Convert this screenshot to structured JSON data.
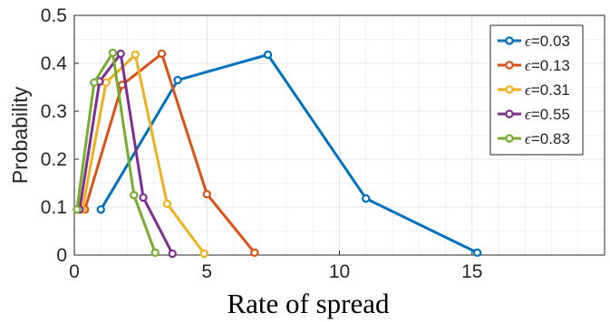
{
  "chart_data": {
    "type": "line",
    "xlabel": "Rate of spread",
    "ylabel": "Probability",
    "xlim": [
      0,
      20
    ],
    "ylim": [
      0,
      0.5
    ],
    "xticks": [
      0,
      5,
      10,
      15
    ],
    "xtick_labels": [
      "0",
      "5",
      "10",
      "15"
    ],
    "yticks": [
      0,
      0.1,
      0.2,
      0.3,
      0.4,
      0.5
    ],
    "ytick_labels": [
      "0",
      "0.1",
      "0.2",
      "0.3",
      "0.4",
      "0.5"
    ],
    "grid": true,
    "minor_grid": true,
    "legend_position": "top-right",
    "legend_symbol": "ϵ",
    "series": [
      {
        "name": "=0.03",
        "color": "#0072BD",
        "x": [
          1.0,
          3.9,
          7.3,
          11.0,
          15.2
        ],
        "y": [
          0.095,
          0.365,
          0.418,
          0.118,
          0.005
        ]
      },
      {
        "name": "=0.13",
        "color": "#D95319",
        "x": [
          0.4,
          1.8,
          3.3,
          5.0,
          6.8
        ],
        "y": [
          0.095,
          0.355,
          0.42,
          0.127,
          0.005
        ]
      },
      {
        "name": "=0.31",
        "color": "#EDB120",
        "x": [
          0.3,
          1.2,
          2.3,
          3.5,
          4.9
        ],
        "y": [
          0.095,
          0.36,
          0.418,
          0.107,
          0.003
        ]
      },
      {
        "name": "=0.55",
        "color": "#7E2F8E",
        "x": [
          0.2,
          0.95,
          1.75,
          2.6,
          3.7
        ],
        "y": [
          0.095,
          0.362,
          0.42,
          0.12,
          0.003
        ]
      },
      {
        "name": "=0.83",
        "color": "#77AC30",
        "x": [
          0.1,
          0.75,
          1.45,
          2.25,
          3.05
        ],
        "y": [
          0.095,
          0.36,
          0.422,
          0.125,
          0.005
        ]
      }
    ]
  },
  "colors": {
    "axis": "#262626",
    "grid": "#e6e6e6",
    "minor_grid": "#f2f2f2",
    "legend_border": "#262626"
  }
}
